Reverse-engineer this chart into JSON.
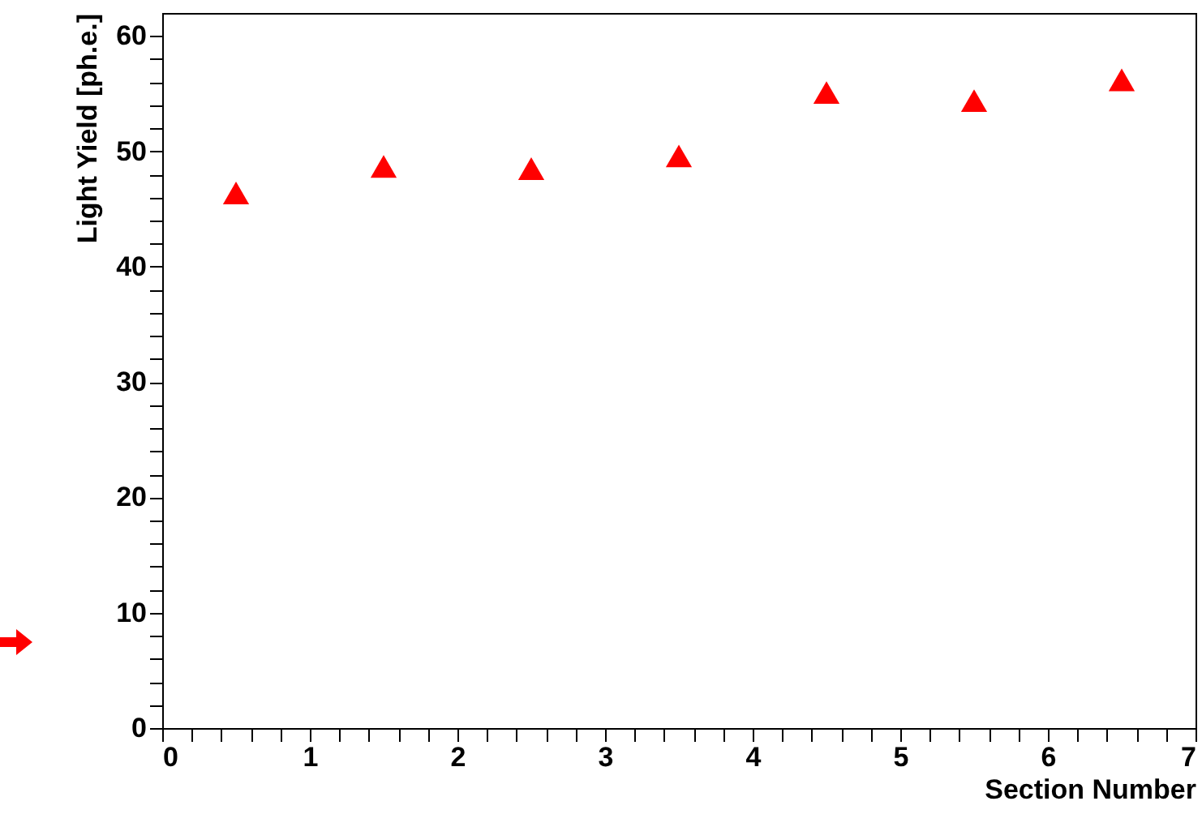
{
  "chart_data": {
    "type": "scatter",
    "xlabel": "Section Number",
    "ylabel": "Light Yield [ph.e.]",
    "marker": "triangle",
    "x": [
      0.5,
      1.5,
      2.5,
      3.5,
      4.5,
      5.5,
      6.5
    ],
    "series": [
      {
        "color": "#ff0000",
        "values": [
          46.4,
          48.7,
          48.5,
          49.6,
          55.1,
          54.4,
          56.2
        ]
      }
    ],
    "xlim": [
      0,
      7
    ],
    "ylim": [
      0,
      62
    ],
    "xticks": [
      0,
      1,
      2,
      3,
      4,
      5,
      6,
      7,
      {
        "value": 0.2,
        "label": null
      },
      {
        "value": 0.4,
        "label": null
      },
      {
        "value": 0.6,
        "label": null
      },
      {
        "value": 0.8,
        "label": null
      },
      {
        "value": 1.2,
        "label": null
      },
      {
        "value": 1.4,
        "label": null
      },
      {
        "value": 1.6,
        "label": null
      },
      {
        "value": 1.8,
        "label": null
      },
      {
        "value": 2.2,
        "label": null
      },
      {
        "value": 2.4,
        "label": null
      },
      {
        "value": 2.6,
        "label": null
      },
      {
        "value": 2.8,
        "label": null
      },
      {
        "value": 3.2,
        "label": null
      },
      {
        "value": 3.4,
        "label": null
      },
      {
        "value": 3.6,
        "label": null
      },
      {
        "value": 3.8,
        "label": null
      },
      {
        "value": 4.2,
        "label": null
      },
      {
        "value": 4.4,
        "label": null
      },
      {
        "value": 4.6,
        "label": null
      },
      {
        "value": 4.8,
        "label": null
      },
      {
        "value": 5.2,
        "label": null
      },
      {
        "value": 5.4,
        "label": null
      },
      {
        "value": 5.6,
        "label": null
      },
      {
        "value": 5.8,
        "label": null
      },
      {
        "value": 6.2,
        "label": null
      },
      {
        "value": 6.4,
        "label": null
      },
      {
        "value": 6.6,
        "label": null
      },
      {
        "value": 6.8,
        "label": null
      }
    ],
    "yticks": [
      0,
      10,
      20,
      30,
      40,
      50,
      60,
      {
        "value": 2,
        "label": null
      },
      {
        "value": 4,
        "label": null
      },
      {
        "value": 6,
        "label": null
      },
      {
        "value": 8,
        "label": null
      },
      {
        "value": 12,
        "label": null
      },
      {
        "value": 14,
        "label": null
      },
      {
        "value": 16,
        "label": null
      },
      {
        "value": 18,
        "label": null
      },
      {
        "value": 22,
        "label": null
      },
      {
        "value": 24,
        "label": null
      },
      {
        "value": 26,
        "label": null
      },
      {
        "value": 28,
        "label": null
      },
      {
        "value": 32,
        "label": null
      },
      {
        "value": 34,
        "label": null
      },
      {
        "value": 36,
        "label": null
      },
      {
        "value": 38,
        "label": null
      },
      {
        "value": 42,
        "label": null
      },
      {
        "value": 44,
        "label": null
      },
      {
        "value": 46,
        "label": null
      },
      {
        "value": 48,
        "label": null
      },
      {
        "value": 52,
        "label": null
      },
      {
        "value": 54,
        "label": null
      },
      {
        "value": 56,
        "label": null
      },
      {
        "value": 58,
        "label": null
      }
    ],
    "grid": false
  }
}
